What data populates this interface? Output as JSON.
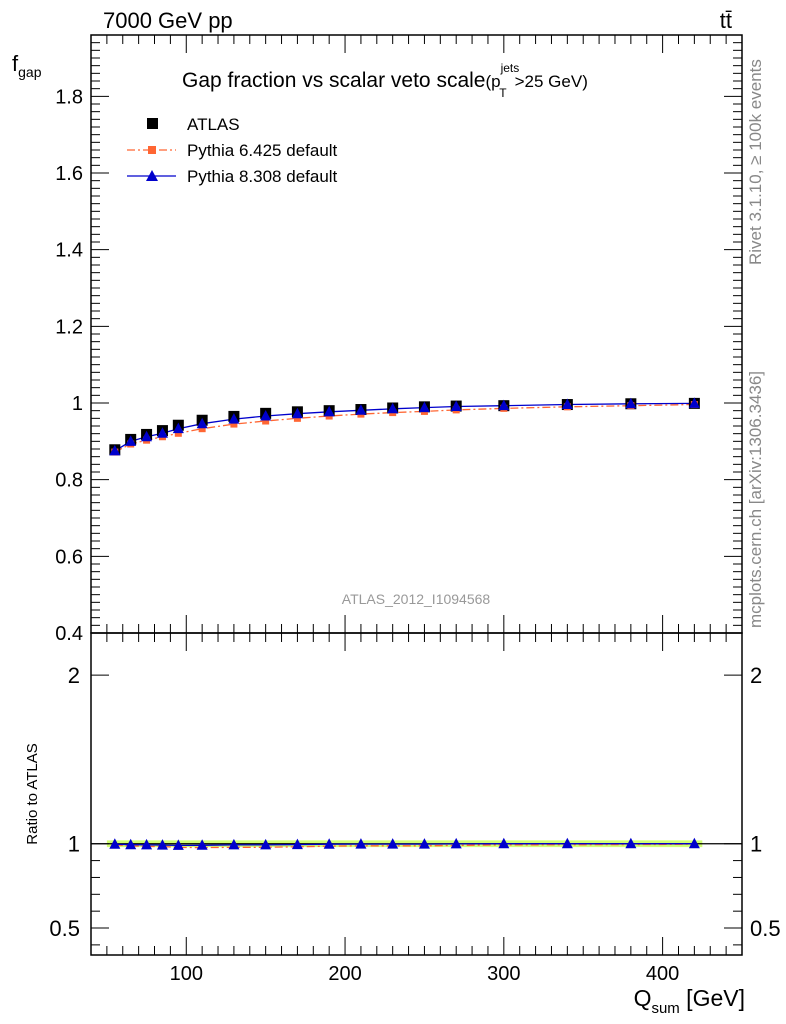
{
  "header": {
    "energy_label": "7000 GeV pp",
    "process_label": "tt̄"
  },
  "side_labels": {
    "rivet": "Rivet 3.1.10, ≥ 100k events",
    "mcplots": "mcplots.cern.ch [arXiv:1306.3436]"
  },
  "watermark": "ATLAS_2012_I1094568",
  "chart_data": [
    {
      "type": "line",
      "panel": "main",
      "title": "Gap fraction vs scalar veto scale",
      "title_annotation": {
        "base": "(p",
        "sup": "jets",
        "sub": "T",
        "tail": ">25 GeV)"
      },
      "ylabel": {
        "base": "f",
        "sub": "gap"
      },
      "xlim": [
        40,
        450
      ],
      "ylim": [
        0.4,
        1.96
      ],
      "yticks": [
        0.4,
        0.6,
        0.8,
        1,
        1.2,
        1.4,
        1.6,
        1.8
      ],
      "ytick_labels": [
        "0.4",
        "0.6",
        "0.8",
        "1",
        "1.2",
        "1.4",
        "1.6",
        "1.8"
      ],
      "legend_placement": "top-left",
      "x": [
        55,
        65,
        75,
        85,
        95,
        110,
        130,
        150,
        170,
        190,
        210,
        230,
        250,
        270,
        300,
        340,
        380,
        420
      ],
      "series": [
        {
          "name": "ATLAS",
          "color": "#000000",
          "marker": "square",
          "line": "none",
          "values": [
            0.878,
            0.905,
            0.918,
            0.928,
            0.942,
            0.955,
            0.965,
            0.973,
            0.977,
            0.98,
            0.983,
            0.987,
            0.99,
            0.992,
            0.993,
            0.996,
            0.998,
            0.999
          ]
        },
        {
          "name": "Pythia 6.425 default",
          "color": "#ff6633",
          "marker": "square-small",
          "line": "dashdot",
          "values": [
            0.872,
            0.893,
            0.903,
            0.912,
            0.921,
            0.933,
            0.945,
            0.953,
            0.96,
            0.966,
            0.971,
            0.975,
            0.978,
            0.982,
            0.986,
            0.99,
            0.993,
            0.996
          ]
        },
        {
          "name": "Pythia 8.308 default",
          "color": "#0000cc",
          "marker": "triangle",
          "line": "solid",
          "values": [
            0.875,
            0.9,
            0.912,
            0.921,
            0.933,
            0.946,
            0.958,
            0.966,
            0.972,
            0.977,
            0.981,
            0.985,
            0.988,
            0.991,
            0.993,
            0.996,
            0.998,
            0.999
          ]
        }
      ]
    },
    {
      "type": "line",
      "panel": "ratio",
      "ylabel": "Ratio to ATLAS",
      "xlabel": {
        "base": "Q",
        "sub": "sum",
        "tail": " [GeV]"
      },
      "xlim": [
        40,
        450
      ],
      "xticks": [
        100,
        200,
        300,
        400
      ],
      "xtick_labels": [
        "100",
        "200",
        "300",
        "400"
      ],
      "ylim": [
        0.34,
        2.25
      ],
      "yticks": [
        0.5,
        1,
        2
      ],
      "ytick_labels": [
        "0.5",
        "1",
        "2"
      ],
      "band": {
        "color": "#ccff66",
        "lower": 0.98,
        "upper": 1.02
      },
      "x": [
        55,
        65,
        75,
        85,
        95,
        110,
        130,
        150,
        170,
        190,
        210,
        230,
        250,
        270,
        300,
        340,
        380,
        420
      ],
      "series": [
        {
          "name": "Pythia 6.425 default",
          "color": "#ff6633",
          "line": "dashdot",
          "values": [
            0.993,
            0.987,
            0.984,
            0.983,
            0.978,
            0.977,
            0.979,
            0.979,
            0.982,
            0.986,
            0.988,
            0.988,
            0.988,
            0.99,
            0.993,
            0.994,
            0.995,
            0.997
          ]
        },
        {
          "name": "Pythia 8.308 default",
          "color": "#0000cc",
          "line": "solid",
          "marker": "triangle",
          "values": [
            0.997,
            0.994,
            0.993,
            0.992,
            0.99,
            0.991,
            0.993,
            0.993,
            0.995,
            0.997,
            0.998,
            0.998,
            0.998,
            0.999,
            1.0,
            1.0,
            1.0,
            1.0
          ]
        }
      ]
    }
  ]
}
